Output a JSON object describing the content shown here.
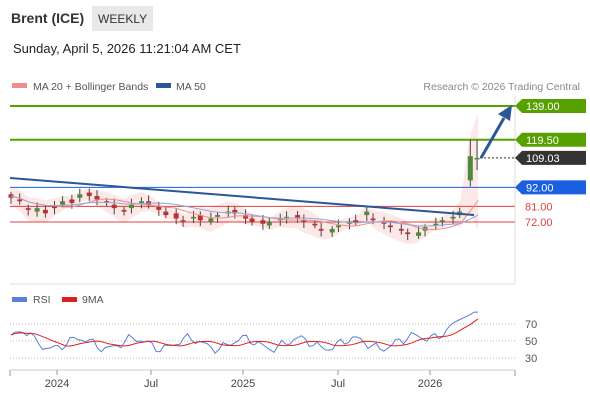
{
  "header": {
    "instrument": "Brent (ICE)",
    "timeframe": "WEEKLY",
    "timestamp": "Sunday, April 5, 2026 11:21:04 AM CET"
  },
  "legend": {
    "items": [
      {
        "label": "MA 20 + Bollinger Bands",
        "color": "#f08c8c"
      },
      {
        "label": "MA 50",
        "color": "#2b5797"
      }
    ],
    "credit": "Research © 2026 Trading Central"
  },
  "rsi_legend": {
    "items": [
      {
        "label": "RSI",
        "color": "#5b7fd6"
      },
      {
        "label": "9MA",
        "color": "#e02020"
      }
    ]
  },
  "colors": {
    "green": "#56a000",
    "blue": "#1a5fe0",
    "dark_blue": "#2b5797",
    "red": "#e04040",
    "dark": "#333333",
    "bull": "#4a8c3a",
    "bear": "#c03030"
  },
  "chart_data": {
    "type": "candlestick",
    "x_ticks": [
      "2024",
      "Jul",
      "2025",
      "Jul",
      "2026"
    ],
    "price_levels": [
      {
        "value": 139.0,
        "label": "139.00",
        "style": "green"
      },
      {
        "value": 119.5,
        "label": "119.50",
        "style": "green"
      },
      {
        "value": 109.03,
        "label": "109.03",
        "style": "last"
      },
      {
        "value": 92.0,
        "label": "92.00",
        "style": "blue"
      },
      {
        "value": 81.0,
        "label": "81.00",
        "style": "red"
      },
      {
        "value": 72.0,
        "label": "72.00",
        "style": "red"
      }
    ],
    "last_price": 109.03,
    "trendline": {
      "from": {
        "date": "2023-09",
        "price": 94.5
      },
      "to": {
        "date": "2026-03",
        "price": 76.5
      }
    },
    "rsi": {
      "levels": [
        70,
        50,
        30
      ],
      "level_labels": [
        "70",
        "50",
        "30"
      ],
      "last_rsi": 84,
      "last_ma": 72
    },
    "price_path": [
      [
        88,
        86
      ],
      [
        85,
        84
      ],
      [
        80,
        79
      ],
      [
        78,
        80
      ],
      [
        79,
        77
      ],
      [
        81,
        80
      ],
      [
        82,
        84
      ],
      [
        85,
        83
      ],
      [
        86,
        88
      ],
      [
        89,
        87
      ],
      [
        87,
        85
      ],
      [
        84,
        83
      ],
      [
        82,
        80
      ],
      [
        79,
        78
      ],
      [
        80,
        82
      ],
      [
        83,
        84
      ],
      [
        84,
        82
      ],
      [
        81,
        79
      ],
      [
        78,
        76
      ],
      [
        77,
        74
      ],
      [
        73,
        72
      ],
      [
        74,
        75
      ],
      [
        76,
        73
      ],
      [
        72,
        74
      ],
      [
        75,
        76
      ],
      [
        77,
        78
      ],
      [
        79,
        77
      ],
      [
        76,
        74
      ],
      [
        74,
        72
      ],
      [
        73,
        71
      ],
      [
        70,
        72
      ],
      [
        73,
        74
      ],
      [
        74,
        75
      ],
      [
        76,
        74
      ],
      [
        73,
        72
      ],
      [
        71,
        70
      ],
      [
        68,
        67
      ],
      [
        66,
        68
      ],
      [
        69,
        70
      ],
      [
        71,
        72
      ],
      [
        73,
        72
      ],
      [
        76,
        78
      ],
      [
        74,
        73
      ],
      [
        72,
        71
      ],
      [
        70,
        69
      ],
      [
        68,
        67
      ],
      [
        66,
        65
      ],
      [
        64,
        66
      ],
      [
        67,
        69
      ],
      [
        70,
        71
      ],
      [
        72,
        73
      ],
      [
        74,
        75
      ],
      [
        76,
        78
      ],
      [
        96,
        110
      ],
      [
        109,
        109.03
      ]
    ]
  }
}
